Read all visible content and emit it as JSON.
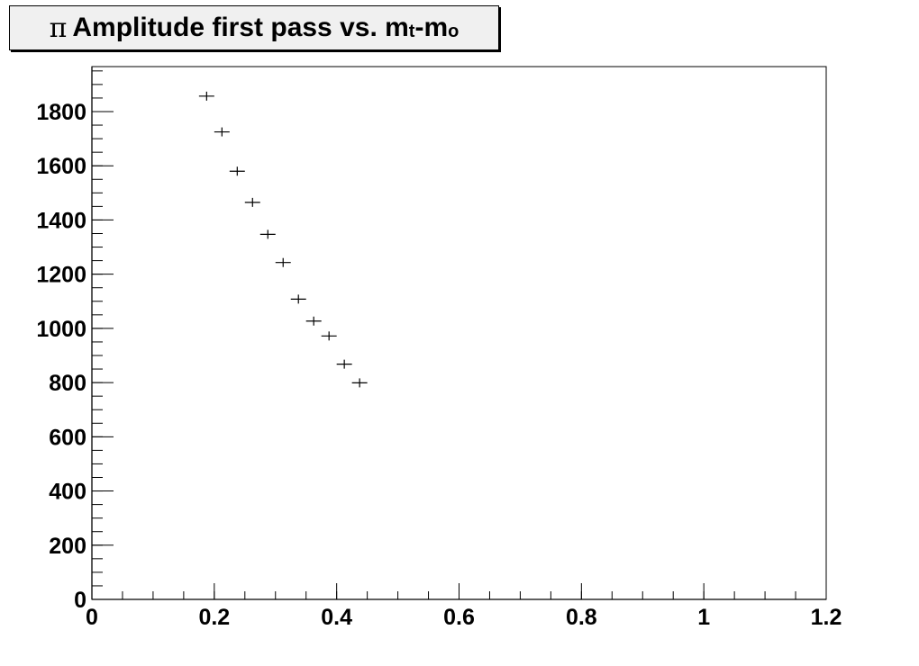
{
  "title": {
    "symbol": "π",
    "main": " Amplitude first pass vs. m",
    "sub1": "t",
    "mid": "-m",
    "sub2": "o"
  },
  "chart_data": {
    "type": "scatter",
    "title": "π Amplitude first pass vs. mt-mo",
    "xlabel": "",
    "ylabel": "",
    "xlim": [
      0,
      1.2
    ],
    "ylim": [
      0,
      1966
    ],
    "x_ticks": [
      0,
      0.2,
      0.4,
      0.6,
      0.8,
      1,
      1.2
    ],
    "x_tick_labels": [
      "0",
      "0.2",
      "0.4",
      "0.6",
      "0.8",
      "1",
      "1.2"
    ],
    "y_ticks": [
      0,
      200,
      400,
      600,
      800,
      1000,
      1200,
      1400,
      1600,
      1800
    ],
    "y_tick_labels": [
      "0",
      "200",
      "400",
      "600",
      "800",
      "1000",
      "1200",
      "1400",
      "1600",
      "1800"
    ],
    "grid": false,
    "legend": "none",
    "series": [
      {
        "x": [
          0.1875,
          0.2125,
          0.2375,
          0.2625,
          0.2875,
          0.3125,
          0.3375,
          0.3625,
          0.3875,
          0.4125,
          0.4375
        ],
        "y": [
          1857,
          1725,
          1580,
          1465,
          1347,
          1243,
          1108,
          1027,
          972,
          868,
          799
        ],
        "x_err": [
          0.0125,
          0.0125,
          0.0125,
          0.0125,
          0.0125,
          0.0125,
          0.0125,
          0.0125,
          0.0125,
          0.0125,
          0.0125
        ],
        "y_err": [
          5,
          5,
          5,
          5,
          5,
          5,
          5,
          5,
          5,
          5,
          5
        ],
        "color": "#000000"
      }
    ]
  }
}
